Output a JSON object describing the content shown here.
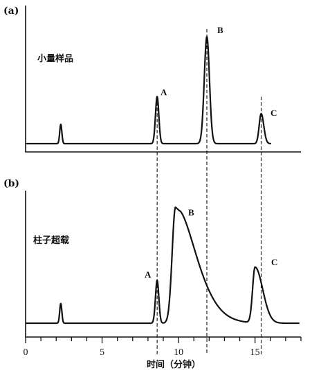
{
  "chart_data": [
    {
      "type": "line",
      "panel": "(a)",
      "annotation": "小量样品",
      "xlim": [
        0,
        18
      ],
      "baseline": 0,
      "peaks": [
        {
          "label": "",
          "time": 2.3,
          "height": 0.18
        },
        {
          "label": "A",
          "time": 8.6,
          "height": 0.44
        },
        {
          "label": "B",
          "time": 11.85,
          "height": 1.0
        },
        {
          "label": "C",
          "time": 15.4,
          "height": 0.28
        }
      ]
    },
    {
      "type": "line",
      "panel": "(b)",
      "annotation": "柱子超载",
      "xlim": [
        0,
        18
      ],
      "baseline": 0,
      "peaks": [
        {
          "label": "",
          "time": 2.3,
          "height": 0.17
        },
        {
          "label": "A",
          "time": 8.6,
          "height": 0.37
        },
        {
          "label": "B",
          "time": 9.8,
          "height": 1.0
        },
        {
          "label": "C",
          "time": 15.0,
          "height": 0.48
        }
      ]
    }
  ],
  "x_axis": {
    "title": "时间（分钟）",
    "tick_labels": [
      {
        "value": 0,
        "label": "0"
      },
      {
        "value": 5,
        "label": "5"
      },
      {
        "value": 10,
        "label": "10"
      },
      {
        "value": 15,
        "label": "15"
      }
    ]
  },
  "reference_lines": [
    8.6,
    11.85,
    15.4
  ]
}
